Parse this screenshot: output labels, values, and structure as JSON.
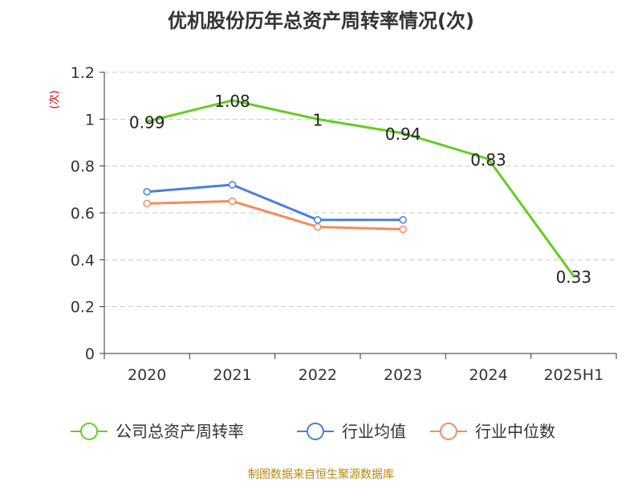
{
  "chart_data": {
    "type": "line",
    "title": "优机股份历年总资产周转率情况(次)",
    "unit_label": "(次)",
    "categories": [
      "2020",
      "2021",
      "2022",
      "2023",
      "2024",
      "2025H1"
    ],
    "yticks": [
      "0",
      "0.2",
      "0.4",
      "0.6",
      "0.8",
      "1",
      "1.2"
    ],
    "ylim": [
      0,
      1.2
    ],
    "grid": true,
    "legend_position": "bottom",
    "series": [
      {
        "name": "公司总资产周转率",
        "color": "#66cc22",
        "values": [
          0.99,
          1.08,
          1.0,
          0.94,
          0.83,
          0.33
        ],
        "labels": [
          "0.99",
          "1.08",
          "1",
          "0.94",
          "0.83",
          "0.33"
        ],
        "markers": false
      },
      {
        "name": "行业均值",
        "color": "#4a7fdc",
        "values": [
          0.69,
          0.72,
          0.57,
          0.57,
          null,
          null
        ],
        "markers": true
      },
      {
        "name": "行业中位数",
        "color": "#f58c5c",
        "values": [
          0.64,
          0.65,
          0.54,
          0.53,
          null,
          null
        ],
        "markers": true
      }
    ],
    "source": "制图数据来自恒生聚源数据库"
  }
}
